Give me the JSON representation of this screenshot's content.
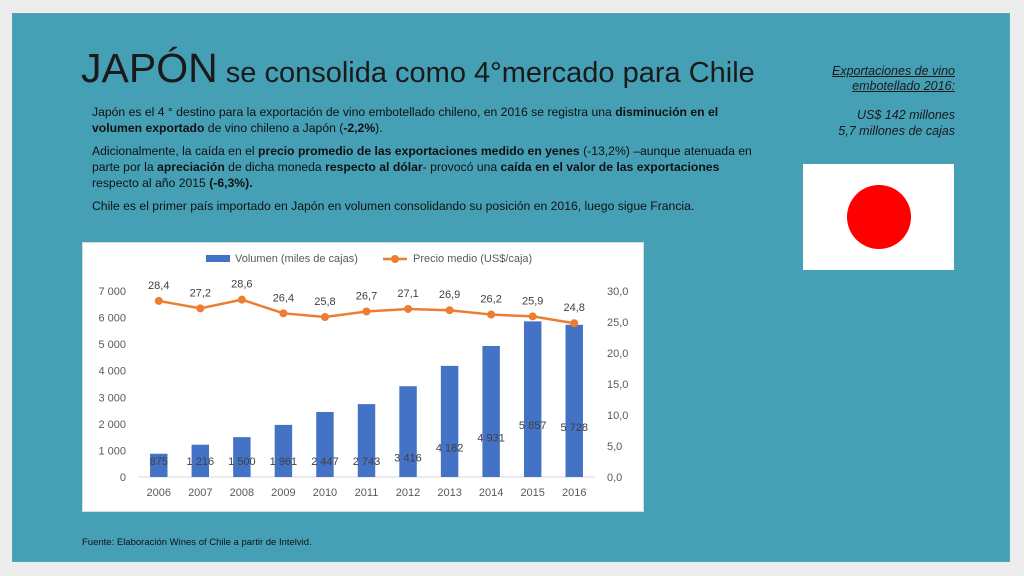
{
  "slide": {
    "title_big": "JAPÓN",
    "title_small": " se consolida como 4°mercado para Chile",
    "sidebar_caption_line1": "Exportaciones de vino",
    "sidebar_caption_line2": "embotellado 2016:",
    "sidebar_value1": "US$ 142 millones",
    "sidebar_value2": "5,7 millones de cajas",
    "flag_colors": {
      "field": "#ffffff",
      "disc": "#ff0000"
    },
    "para1": [
      {
        "t": "Japón es el 4 ° destino para la exportación de vino embotellado chileno, en 2016 se registra una ",
        "b": false
      },
      {
        "t": "disminución en el volumen exportado",
        "b": true
      },
      {
        "t": " de vino chileno a Japón (",
        "b": false
      },
      {
        "t": "-2,2%",
        "b": true
      },
      {
        "t": ").",
        "b": false
      }
    ],
    "para2": [
      {
        "t": "Adicionalmente, la caída en el ",
        "b": false
      },
      {
        "t": "precio promedio de las exportaciones medido en yenes",
        "b": true
      },
      {
        "t": " (-13,2%) –aunque atenuada en parte por la ",
        "b": false
      },
      {
        "t": "apreciación",
        "b": true
      },
      {
        "t": " de dicha moneda ",
        "b": false
      },
      {
        "t": "respecto al dólar",
        "b": true
      },
      {
        "t": "- provocó una ",
        "b": false
      },
      {
        "t": "caída  en el valor de las exportaciones",
        "b": true
      },
      {
        "t": " respecto al año 2015 ",
        "b": false
      },
      {
        "t": "(-6,3%).",
        "b": true
      }
    ],
    "para3": [
      {
        "t": "Chile es el primer país importado en Japón en volumen consolidando su posición en 2016, luego sigue Francia.",
        "b": false
      }
    ],
    "source": "Fuente: Elaboración Wines of Chile a partir de Intelvid.",
    "background_color": "#459fb5"
  },
  "chart_data": {
    "type": "bar",
    "categories": [
      "2006",
      "2007",
      "2008",
      "2009",
      "2010",
      "2011",
      "2012",
      "2013",
      "2014",
      "2015",
      "2016"
    ],
    "series": [
      {
        "name": "Volumen (miles de cajas)",
        "type": "bar",
        "axis": "left",
        "color": "#4472c4",
        "values": [
          875,
          1216,
          1500,
          1961,
          2447,
          2743,
          3416,
          4182,
          4931,
          5857,
          5728
        ],
        "labels": [
          "875",
          "1 216",
          "1 500",
          "1 961",
          "2 447",
          "2 743",
          "3 416",
          "4 182",
          "4 931",
          "5 857",
          "5 728"
        ]
      },
      {
        "name": "Precio medio (US$/caja)",
        "type": "line",
        "axis": "right",
        "color": "#ed7d31",
        "values": [
          28.4,
          27.2,
          28.6,
          26.4,
          25.8,
          26.7,
          27.1,
          26.9,
          26.2,
          25.9,
          24.8
        ],
        "labels": [
          "28,4",
          "27,2",
          "28,6",
          "26,4",
          "25,8",
          "26,7",
          "27,1",
          "26,9",
          "26,2",
          "25,9",
          "24,8"
        ]
      }
    ],
    "y_left": {
      "min": 0,
      "max": 7000,
      "ticks": [
        "0",
        "1 000",
        "2 000",
        "3 000",
        "4 000",
        "5 000",
        "6 000",
        "7 000"
      ]
    },
    "y_right": {
      "min": 0,
      "max": 30,
      "ticks": [
        "0,0",
        "5,0",
        "10,0",
        "15,0",
        "20,0",
        "25,0",
        "30,0"
      ]
    },
    "legend_position": "top",
    "grid": false
  }
}
